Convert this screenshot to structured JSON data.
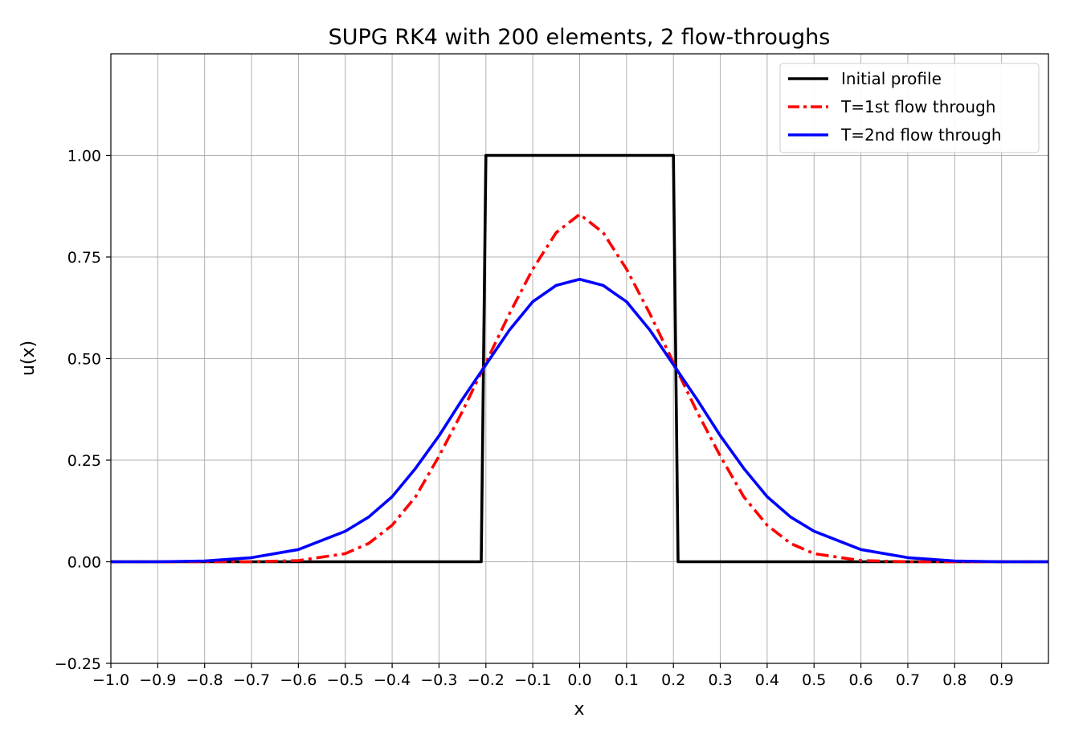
{
  "chart_data": {
    "type": "line",
    "title": "SUPG RK4 with 200 elements, 2 flow-throughs",
    "xlabel": "x",
    "ylabel": "u(x)",
    "xlim": [
      -1.0,
      1.0
    ],
    "ylim": [
      -0.25,
      1.25
    ],
    "grid": true,
    "legend_position": "top-right",
    "x_ticks": [
      -1.0,
      -0.9,
      -0.8,
      -0.7,
      -0.6,
      -0.5,
      -0.4,
      -0.3,
      -0.2,
      -0.1,
      0.0,
      0.1,
      0.2,
      0.3,
      0.4,
      0.5,
      0.6,
      0.7,
      0.8,
      0.9
    ],
    "x_tick_labels": [
      "−1.0",
      "−0.9",
      "−0.8",
      "−0.7",
      "−0.6",
      "−0.5",
      "−0.4",
      "−0.3",
      "−0.2",
      "−0.1",
      "0.0",
      "0.1",
      "0.2",
      "0.3",
      "0.4",
      "0.5",
      "0.6",
      "0.7",
      "0.8",
      "0.9"
    ],
    "y_ticks": [
      -0.25,
      0.0,
      0.25,
      0.5,
      0.75,
      1.0
    ],
    "y_tick_labels": [
      "−0.25",
      "0.00",
      "0.25",
      "0.50",
      "0.75",
      "1.00"
    ],
    "series": [
      {
        "name": "Initial profile",
        "color": "#000000",
        "style": "solid",
        "x": [
          -1.0,
          -0.21,
          -0.2,
          0.2,
          0.21,
          1.0
        ],
        "y": [
          0.0,
          0.0,
          1.0,
          1.0,
          0.0,
          0.0
        ]
      },
      {
        "name": "T=1st flow through",
        "color": "#ff0000",
        "style": "dashdot",
        "x": [
          -1.0,
          -0.8,
          -0.7,
          -0.6,
          -0.5,
          -0.45,
          -0.4,
          -0.35,
          -0.3,
          -0.25,
          -0.2,
          -0.15,
          -0.1,
          -0.05,
          0.0,
          0.05,
          0.1,
          0.15,
          0.2,
          0.25,
          0.3,
          0.35,
          0.4,
          0.45,
          0.5,
          0.6,
          0.7,
          0.8,
          1.0
        ],
        "y": [
          0.0,
          0.0,
          0.0,
          0.003,
          0.02,
          0.045,
          0.09,
          0.16,
          0.26,
          0.37,
          0.49,
          0.61,
          0.72,
          0.81,
          0.855,
          0.81,
          0.72,
          0.61,
          0.49,
          0.37,
          0.26,
          0.16,
          0.09,
          0.045,
          0.02,
          0.003,
          0.0,
          0.0,
          0.0
        ]
      },
      {
        "name": "T=2nd flow through",
        "color": "#0000ff",
        "style": "solid",
        "x": [
          -1.0,
          -0.9,
          -0.8,
          -0.7,
          -0.6,
          -0.5,
          -0.45,
          -0.4,
          -0.35,
          -0.3,
          -0.25,
          -0.2,
          -0.15,
          -0.1,
          -0.05,
          0.0,
          0.05,
          0.1,
          0.15,
          0.2,
          0.25,
          0.3,
          0.35,
          0.4,
          0.45,
          0.5,
          0.6,
          0.7,
          0.8,
          0.9,
          1.0
        ],
        "y": [
          0.0,
          0.0,
          0.002,
          0.01,
          0.03,
          0.075,
          0.11,
          0.16,
          0.23,
          0.31,
          0.4,
          0.485,
          0.57,
          0.64,
          0.68,
          0.695,
          0.68,
          0.64,
          0.57,
          0.485,
          0.4,
          0.31,
          0.23,
          0.16,
          0.11,
          0.075,
          0.03,
          0.01,
          0.002,
          0.0,
          0.0
        ]
      }
    ]
  }
}
